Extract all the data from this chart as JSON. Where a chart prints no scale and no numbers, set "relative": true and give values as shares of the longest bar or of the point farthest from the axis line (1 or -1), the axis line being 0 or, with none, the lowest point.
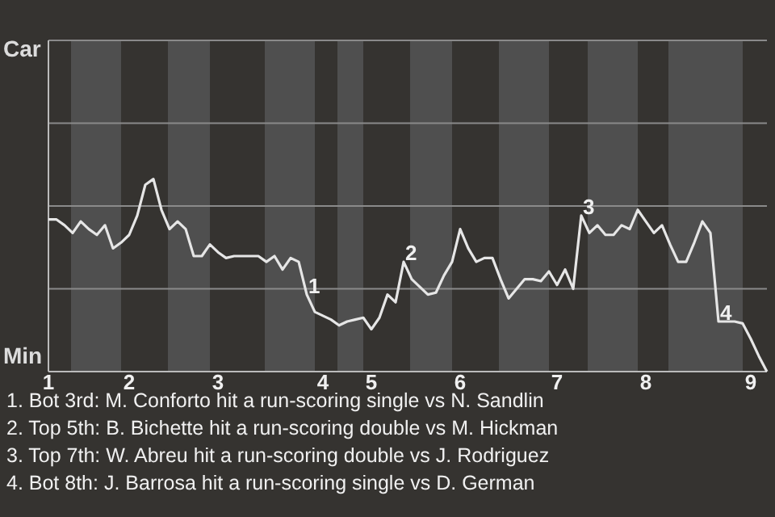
{
  "chart_data": {
    "type": "line",
    "relative": true,
    "categories": [
      "1",
      null,
      null,
      null,
      null,
      null,
      null,
      null,
      null,
      null,
      "2",
      null,
      null,
      null,
      null,
      null,
      null,
      null,
      null,
      null,
      null,
      "3",
      null,
      null,
      null,
      null,
      null,
      null,
      null,
      null,
      null,
      null,
      null,
      null,
      "4",
      null,
      null,
      null,
      null,
      null,
      "5",
      null,
      null,
      null,
      null,
      null,
      null,
      null,
      null,
      null,
      null,
      "6",
      null,
      null,
      null,
      null,
      null,
      null,
      null,
      null,
      null,
      null,
      null,
      "7",
      null,
      null,
      null,
      null,
      null,
      null,
      null,
      null,
      null,
      null,
      "8",
      null,
      null,
      null,
      null,
      null,
      null,
      null,
      null,
      null,
      null,
      null,
      null,
      "9",
      null,
      null
    ],
    "marker": "none",
    "line_style": "solid",
    "ref_lines": [
      {
        "axis": "y",
        "value": 0.43,
        "color": "#8a8a8a",
        "line_style": "solid"
      },
      {
        "axis": "y",
        "value": 0.86,
        "color": "#8a8a8a",
        "line_style": "solid"
      },
      {
        "axis": "y",
        "value": 1.29,
        "color": "#8a8a8a",
        "line_style": "solid"
      },
      {
        "axis": "y",
        "value": 1.72,
        "color": "#8a8a8a",
        "line_style": "solid"
      }
    ],
    "series": [
      {
        "color": "#e6e6e6",
        "values": [
          0.79,
          0.79,
          0.76,
          0.72,
          0.78,
          0.74,
          0.71,
          0.76,
          0.64,
          0.67,
          0.71,
          0.81,
          0.97,
          1,
          0.84,
          0.74,
          0.78,
          0.74,
          0.6,
          0.6,
          0.66,
          0.62,
          0.59,
          0.6,
          0.6,
          0.6,
          0.6,
          0.57,
          0.6,
          0.53,
          0.59,
          0.57,
          0.4,
          0.31,
          0.29,
          0.27,
          0.24,
          0.26,
          0.27,
          0.28,
          0.22,
          0.28,
          0.4,
          0.36,
          0.57,
          0.48,
          0.44,
          0.4,
          0.41,
          0.5,
          0.57,
          0.74,
          0.64,
          0.57,
          0.59,
          0.59,
          0.48,
          0.38,
          0.43,
          0.48,
          0.48,
          0.47,
          0.52,
          0.45,
          0.53,
          0.43,
          0.81,
          0.72,
          0.76,
          0.71,
          0.71,
          0.76,
          0.74,
          0.84,
          0.78,
          0.72,
          0.76,
          0.66,
          0.57,
          0.57,
          0.67,
          0.78,
          0.72,
          0.26,
          0.26,
          0.26,
          0.25,
          0.17,
          0.08,
          0
        ]
      }
    ],
    "annotations": [
      "Car",
      "Min",
      {
        "text": "1",
        "y": 0.4
      },
      {
        "text": "2",
        "y": 0.57
      },
      {
        "text": "3",
        "y": 0.81
      },
      {
        "text": "4",
        "y": 0.26
      },
      "1. Bot 3rd: M. Conforto hit a run-scoring single vs N. Sandlin",
      "2. Top 5th: B. Bichette hit a run-scoring double vs M. Hickman",
      "3. Top 7th: W. Abreu hit a run-scoring double vs J. Rodriguez",
      "4. Bot 8th: J. Barrosa hit a run-scoring single vs D. German"
    ]
  }
}
